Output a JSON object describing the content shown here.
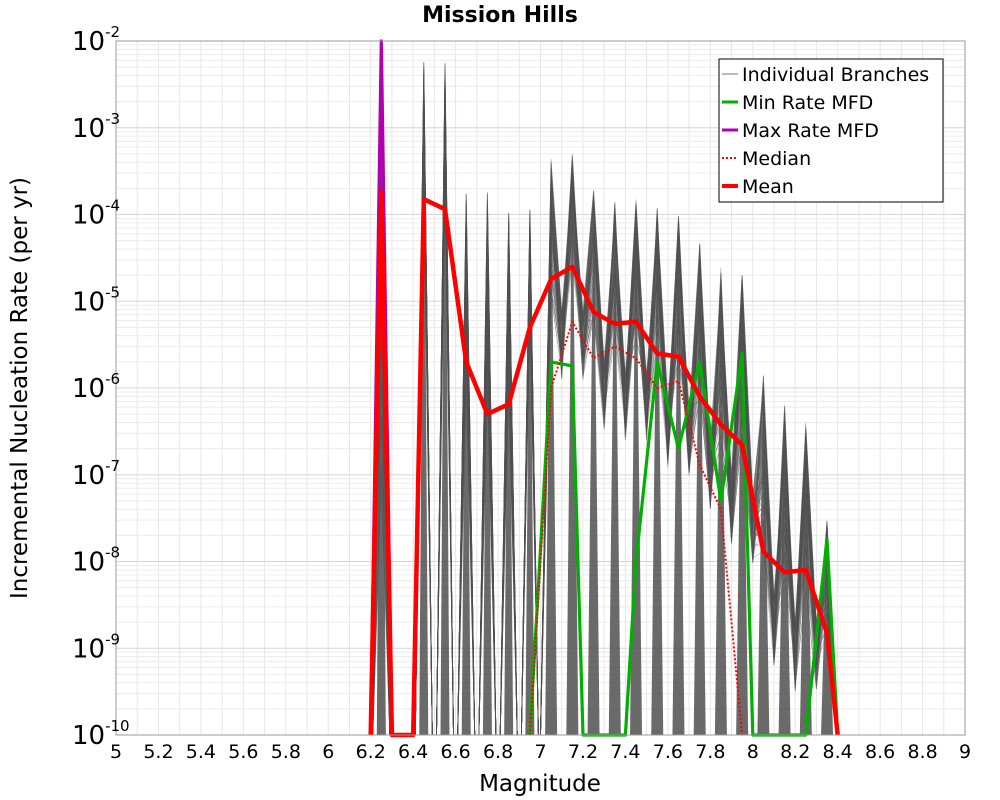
{
  "chart_data": {
    "type": "line",
    "title": "Mission Hills",
    "xlabel": "Magnitude",
    "ylabel": "Incremental Nucleation Rate (per yr)",
    "xlim": [
      5,
      9
    ],
    "ylim": [
      1e-10,
      0.01
    ],
    "y_scale": "log",
    "grid": true,
    "legend_position": "top-right",
    "x_ticks": [
      "5",
      "5.2",
      "5.4",
      "5.6",
      "5.8",
      "6",
      "6.2",
      "6.4",
      "6.6",
      "6.8",
      "7",
      "7.2",
      "7.4",
      "7.6",
      "7.8",
      "8",
      "8.2",
      "8.4",
      "8.6",
      "8.8",
      "9"
    ],
    "y_ticks": [
      {
        "base": "10",
        "exp": "-10",
        "value": 1e-10
      },
      {
        "base": "10",
        "exp": "-9",
        "value": 1e-09
      },
      {
        "base": "10",
        "exp": "-8",
        "value": 1e-08
      },
      {
        "base": "10",
        "exp": "-7",
        "value": 1e-07
      },
      {
        "base": "10",
        "exp": "-6",
        "value": 1e-06
      },
      {
        "base": "10",
        "exp": "-5",
        "value": 1e-05
      },
      {
        "base": "10",
        "exp": "-4",
        "value": 0.0001
      },
      {
        "base": "10",
        "exp": "-3",
        "value": 0.001
      },
      {
        "base": "10",
        "exp": "-2",
        "value": 0.01
      }
    ],
    "series": [
      {
        "name": "Individual Branches",
        "color": "#505050",
        "style": "thin-envelope",
        "peaks": [
          {
            "x": 6.25,
            "low": 1e-08,
            "high": 0.01
          },
          {
            "x": 6.45,
            "low": 0.0001,
            "high": 0.006
          },
          {
            "x": 6.55,
            "low": 0.0001,
            "high": 0.006
          },
          {
            "x": 6.65,
            "low": 1e-06,
            "high": 0.0002
          },
          {
            "x": 6.75,
            "low": 4e-07,
            "high": 0.00018
          },
          {
            "x": 6.85,
            "low": 5e-07,
            "high": 0.00011
          },
          {
            "x": 6.95,
            "low": 5e-06,
            "high": 0.00012
          },
          {
            "x": 7.05,
            "low": 1e-05,
            "high": 0.00045
          },
          {
            "x": 7.15,
            "low": 1.5e-05,
            "high": 0.0005
          },
          {
            "x": 7.25,
            "low": 4e-06,
            "high": 0.0002
          },
          {
            "x": 7.35,
            "low": 3e-06,
            "high": 0.00015
          },
          {
            "x": 7.45,
            "low": 3e-06,
            "high": 0.00015
          },
          {
            "x": 7.55,
            "low": 1.5e-06,
            "high": 0.00012
          },
          {
            "x": 7.65,
            "low": 1.2e-06,
            "high": 0.0001
          },
          {
            "x": 7.75,
            "low": 5e-07,
            "high": 5e-05
          },
          {
            "x": 7.85,
            "low": 2e-07,
            "high": 2.5e-05
          },
          {
            "x": 7.95,
            "low": 1.2e-07,
            "high": 2e-05
          },
          {
            "x": 8.05,
            "low": 8e-09,
            "high": 1.5e-06
          },
          {
            "x": 8.15,
            "low": 4e-09,
            "high": 7e-07
          },
          {
            "x": 8.25,
            "low": 4e-09,
            "high": 4e-07
          },
          {
            "x": 8.35,
            "low": 1e-09,
            "high": 3e-08
          }
        ]
      },
      {
        "name": "Min Rate MFD",
        "color": "#00b000",
        "x": [
          6.95,
          7.05,
          7.15,
          7.2,
          7.4,
          7.45,
          7.55,
          7.65,
          7.75,
          7.85,
          7.95,
          8.0,
          8.25,
          8.35,
          8.4
        ],
        "y": [
          1e-10,
          2e-06,
          1.8e-06,
          1e-10,
          1e-10,
          1e-08,
          2e-06,
          2e-07,
          2e-06,
          5e-08,
          2.5e-06,
          1e-10,
          1e-10,
          1.8e-08,
          1e-10
        ]
      },
      {
        "name": "Max Rate MFD",
        "color": "#b000b0",
        "x": [
          6.2,
          6.25,
          6.3
        ],
        "y": [
          1e-10,
          0.01,
          1e-10
        ]
      },
      {
        "name": "Median",
        "color": "#ff0000",
        "style": "dotted",
        "x": [
          6.95,
          7.05,
          7.15,
          7.25,
          7.35,
          7.45,
          7.55,
          7.65,
          7.75,
          7.85,
          7.95
        ],
        "y": [
          1e-10,
          1e-06,
          5.8e-06,
          2.2e-06,
          3e-06,
          2.2e-06,
          1e-06,
          1.2e-06,
          1.3e-07,
          4e-08,
          1e-10
        ]
      },
      {
        "name": "Mean",
        "color": "#ff0000",
        "x": [
          6.2,
          6.25,
          6.3,
          6.4,
          6.45,
          6.55,
          6.65,
          6.75,
          6.85,
          6.95,
          7.05,
          7.15,
          7.25,
          7.35,
          7.45,
          7.55,
          7.65,
          7.75,
          7.85,
          7.95,
          8.05,
          8.15,
          8.25,
          8.35,
          8.4
        ],
        "y": [
          1e-10,
          0.00018,
          1e-10,
          1e-10,
          0.00015,
          0.000115,
          2e-06,
          5e-07,
          6.5e-07,
          5e-06,
          1.8e-05,
          2.5e-05,
          7.5e-06,
          5.5e-06,
          5.8e-06,
          2.5e-06,
          2.3e-06,
          8e-07,
          3.8e-07,
          2.2e-07,
          1.3e-08,
          7.5e-09,
          8e-09,
          1.5e-09,
          1e-10
        ]
      }
    ]
  }
}
